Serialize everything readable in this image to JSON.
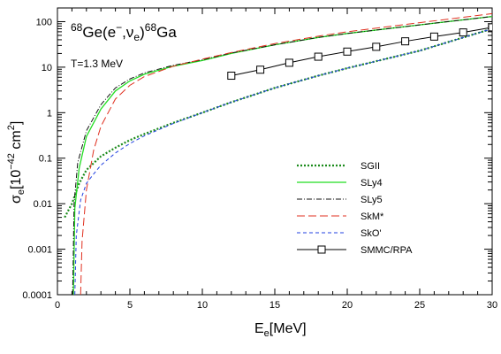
{
  "chart_data": {
    "type": "line",
    "title": {
      "mass_left": "68",
      "element_left": "Ge(e",
      "minus": "−",
      "sep": ",ν",
      "sub_e": "e",
      "close": ")",
      "mass_right": "68",
      "element_right": "Ga"
    },
    "annotation": "T=1.3 MeV",
    "xlabel": {
      "main": "E",
      "sub": "e",
      "unit": "[MeV]"
    },
    "ylabel": {
      "main": "σ",
      "sub": "e",
      "unit_open": "[10",
      "exp": "−42",
      "unit_mid": " cm",
      "exp2": "2",
      "unit_close": "]"
    },
    "xlim": [
      0,
      30
    ],
    "ylim": [
      0.0001,
      200
    ],
    "yscale": "log",
    "x_ticks": [
      0,
      5,
      10,
      15,
      20,
      25,
      30
    ],
    "x_tick_labels": [
      "0",
      "5",
      "10",
      "15",
      "20",
      "25",
      "30"
    ],
    "y_ticks": [
      0.0001,
      0.001,
      0.01,
      0.1,
      1,
      10,
      100
    ],
    "y_tick_labels": [
      "0.0001",
      "0.001",
      "0.01",
      "0.1",
      "1",
      "10",
      "100"
    ],
    "legend_position": "bottom-right",
    "series": [
      {
        "name": "SGII",
        "color": "#1a8a1a",
        "dash": "2,2",
        "width": 2.2,
        "x": [
          0.5,
          1,
          1.5,
          2,
          3,
          4,
          5,
          6,
          8,
          10,
          12,
          15,
          18,
          20,
          25,
          30
        ],
        "y": [
          0.005,
          0.01,
          0.028,
          0.055,
          0.11,
          0.17,
          0.25,
          0.34,
          0.6,
          1.0,
          1.7,
          3.5,
          6.5,
          9.5,
          23,
          70
        ]
      },
      {
        "name": "SLy4",
        "color": "#22dd22",
        "dash": "",
        "width": 1.3,
        "x": [
          1.1,
          1.2,
          1.5,
          2,
          3,
          4,
          5,
          6,
          8,
          10,
          12,
          15,
          18,
          20,
          25,
          30
        ],
        "y": [
          0.0001,
          0.008,
          0.06,
          0.3,
          1.2,
          3.0,
          5.0,
          7.0,
          10.5,
          14,
          20,
          31,
          45,
          55,
          85,
          130
        ]
      },
      {
        "name": "SLy5",
        "color": "#111111",
        "dash": "6,2,1,2",
        "width": 1.0,
        "x": [
          1.05,
          1.15,
          1.4,
          2,
          3,
          4,
          5,
          6,
          8,
          10,
          12,
          15,
          18,
          20,
          25,
          30
        ],
        "y": [
          0.0001,
          0.01,
          0.08,
          0.4,
          1.5,
          3.5,
          5.5,
          7.5,
          11,
          14.5,
          20.5,
          31,
          45,
          55,
          85,
          130
        ]
      },
      {
        "name": "SkM*",
        "color": "#e03020",
        "dash": "9,4",
        "width": 1.0,
        "x": [
          1.6,
          1.7,
          2,
          2.5,
          3,
          4,
          5,
          6,
          8,
          10,
          12,
          15,
          18,
          20,
          25,
          30
        ],
        "y": [
          0.0001,
          0.0015,
          0.02,
          0.15,
          0.5,
          2.0,
          4.0,
          6.2,
          10.5,
          15,
          21,
          33,
          48,
          60,
          95,
          150
        ]
      },
      {
        "name": "SkO'",
        "color": "#2040e0",
        "dash": "4,3",
        "width": 1.0,
        "x": [
          1.2,
          1.3,
          1.6,
          2,
          2.5,
          3,
          4,
          5,
          6,
          8,
          10,
          12,
          15,
          18,
          20,
          25,
          30
        ],
        "y": [
          0.0001,
          0.002,
          0.012,
          0.028,
          0.045,
          0.07,
          0.13,
          0.21,
          0.31,
          0.58,
          1.0,
          1.7,
          3.5,
          6.5,
          9.5,
          23,
          70
        ]
      },
      {
        "name": "SMMC/RPA",
        "color": "#000000",
        "dash": "",
        "width": 1.0,
        "markers": "square",
        "x": [
          12,
          14,
          16,
          18,
          20,
          22,
          24,
          26,
          28,
          30
        ],
        "y": [
          6.5,
          8.8,
          12.5,
          17,
          22,
          28,
          37,
          47,
          58,
          75
        ]
      }
    ]
  }
}
